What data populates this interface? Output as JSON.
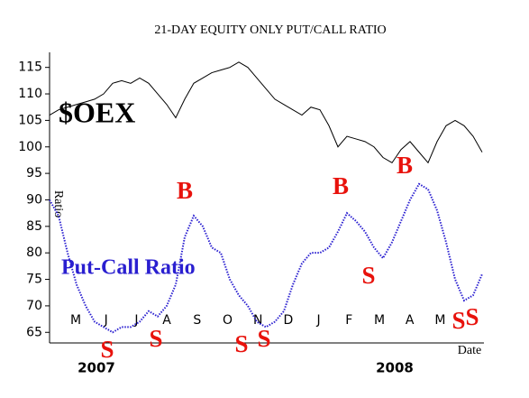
{
  "chart_data": {
    "type": "line",
    "title": "21-DAY EQUITY ONLY PUT/CALL RATIO",
    "y_label": "Ratio",
    "x_label": "Date",
    "months": [
      "M",
      "J",
      "J",
      "A",
      "S",
      "O",
      "N",
      "D",
      "J",
      "F",
      "M",
      "A",
      "M"
    ],
    "years": [
      "2007",
      "2008"
    ],
    "ylim": [
      63,
      117.5
    ],
    "yticks": [
      65,
      70,
      75,
      80,
      85,
      90,
      95,
      100,
      105,
      110,
      115
    ],
    "series": [
      {
        "name": "$OEX",
        "color": "#000000",
        "values": [
          106,
          107,
          107.5,
          108,
          108.5,
          109,
          110,
          112,
          112.5,
          112,
          113,
          112,
          110,
          108,
          105.5,
          109,
          112,
          113,
          114,
          114.5,
          115,
          116,
          115,
          113,
          111,
          109,
          108,
          107,
          106,
          107.5,
          107,
          104,
          100,
          102,
          101.5,
          101,
          100,
          98,
          97,
          99.5,
          101,
          99,
          97,
          101,
          104,
          105,
          104,
          102,
          99
        ]
      },
      {
        "name": "Put-Call Ratio",
        "color": "#2a1fd0",
        "values": [
          90,
          87,
          80,
          74,
          70,
          67,
          66,
          65,
          66,
          66,
          67,
          69,
          68,
          70,
          74,
          83,
          87,
          85,
          81,
          80,
          75,
          72,
          70,
          67,
          66,
          67,
          69,
          74,
          78,
          80,
          80,
          81,
          84,
          87.5,
          86,
          84,
          81,
          79,
          82,
          86,
          90,
          93,
          92,
          88,
          82,
          75,
          71,
          72,
          76
        ]
      }
    ],
    "signals": [
      "B",
      "B",
      "B",
      "S",
      "S",
      "S",
      "S",
      "S",
      "S",
      "S"
    ]
  }
}
